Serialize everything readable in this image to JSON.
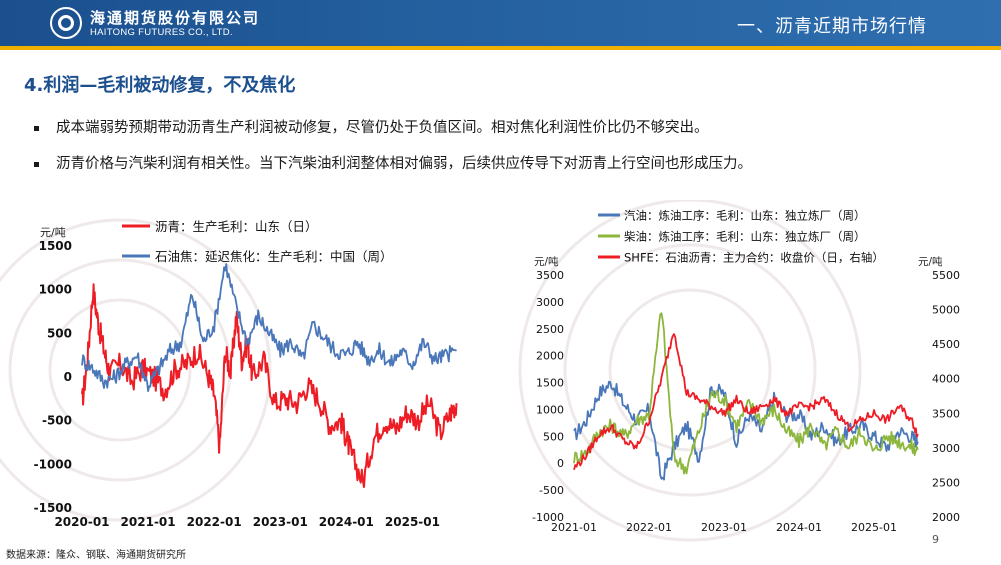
{
  "header": {
    "logo_cn": "海通期货股份有限公司",
    "logo_en": "HAITONG FUTURES CO., LTD.",
    "section_title": "一、沥青近期市场行情"
  },
  "slide": {
    "title": "4.利润—毛利被动修复，不及焦化",
    "bullets": [
      "成本端弱势预期带动沥青生产利润被动修复，尽管仍处于负值区间。相对焦化利润性价比仍不够突出。",
      "沥青价格与汽柴利润有相关性。当下汽柴油利润整体相对偏弱，后续供应传导下对沥青上行空间也形成压力。"
    ],
    "page_number": "9",
    "source_note": "数据来源：隆众、钢联、海通期货研究所"
  },
  "colors": {
    "red": "#ee1c25",
    "blue": "#4a77b9",
    "green": "#8cb63c",
    "brand": "#1b4f8e",
    "accent": "#f0b000"
  },
  "chart_data": [
    {
      "type": "line",
      "ylabel": "元/吨",
      "ylim": [
        -1500,
        1500
      ],
      "yticks": [
        "1500",
        "1000",
        "500",
        "0",
        "-500",
        "-1000",
        "-1500"
      ],
      "xticks": [
        "2020-01",
        "2021-01",
        "2022-01",
        "2023-01",
        "2024-01",
        "2025-01"
      ],
      "series": [
        {
          "name": "沥青：生产毛利：山东（日）",
          "color": "#ee1c25",
          "x": [
            "2020-01",
            "2020-02",
            "2020-03",
            "2020-04",
            "2020-05",
            "2020-06",
            "2020-08",
            "2020-10",
            "2020-12",
            "2021-02",
            "2021-04",
            "2021-06",
            "2021-08",
            "2021-10",
            "2021-12",
            "2022-01",
            "2022-02",
            "2022-03",
            "2022-04",
            "2022-05",
            "2022-06",
            "2022-07",
            "2022-08",
            "2022-10",
            "2022-12",
            "2023-02",
            "2023-04",
            "2023-06",
            "2023-08",
            "2023-10",
            "2023-12",
            "2024-01",
            "2024-02",
            "2024-04",
            "2024-06",
            "2024-08",
            "2024-10",
            "2024-12",
            "2025-02",
            "2025-04",
            "2025-06",
            "2025-08",
            "2025-09"
          ],
          "values": [
            -300,
            200,
            1000,
            600,
            300,
            50,
            150,
            -50,
            100,
            0,
            -150,
            100,
            150,
            300,
            0,
            -200,
            -800,
            300,
            50,
            700,
            200,
            400,
            0,
            200,
            -300,
            -250,
            -300,
            -100,
            -250,
            -550,
            -500,
            -700,
            -900,
            -1200,
            -700,
            -500,
            -600,
            -400,
            -500,
            -300,
            -650,
            -400,
            -300
          ]
        },
        {
          "name": "石油焦：延迟焦化：生产毛利：中国（周）",
          "color": "#4a77b9",
          "x": [
            "2020-01",
            "2020-03",
            "2020-05",
            "2020-07",
            "2020-09",
            "2020-11",
            "2021-01",
            "2021-03",
            "2021-05",
            "2021-07",
            "2021-09",
            "2021-11",
            "2022-01",
            "2022-03",
            "2022-05",
            "2022-07",
            "2022-09",
            "2022-11",
            "2023-01",
            "2023-03",
            "2023-05",
            "2023-07",
            "2023-09",
            "2023-11",
            "2024-01",
            "2024-03",
            "2024-05",
            "2024-07",
            "2024-09",
            "2024-11",
            "2025-01",
            "2025-03",
            "2025-05",
            "2025-07",
            "2025-09"
          ],
          "values": [
            200,
            100,
            -50,
            0,
            150,
            250,
            -100,
            100,
            300,
            400,
            950,
            400,
            600,
            1300,
            800,
            400,
            700,
            500,
            300,
            400,
            200,
            600,
            450,
            300,
            250,
            400,
            200,
            300,
            150,
            300,
            150,
            400,
            200,
            250,
            300
          ]
        }
      ]
    },
    {
      "type": "line",
      "ylabel": "元/吨",
      "ylabel_right": "元/吨",
      "ylim": [
        -1000,
        3500
      ],
      "ylim_right": [
        2000,
        5500
      ],
      "yticks": [
        "3500",
        "3000",
        "2500",
        "2000",
        "1500",
        "1000",
        "500",
        "0",
        "-500",
        "-1000"
      ],
      "yticks_right": [
        "5500",
        "5000",
        "4500",
        "4000",
        "3500",
        "3000",
        "2500",
        "2000"
      ],
      "xticks": [
        "2021-01",
        "2022-01",
        "2023-01",
        "2024-01",
        "2025-01"
      ],
      "series": [
        {
          "name": "汽油：炼油工序：毛利：山东：独立炼厂（周）",
          "color": "#4a77b9",
          "axis": "left",
          "x": [
            "2021-01",
            "2021-03",
            "2021-05",
            "2021-07",
            "2021-09",
            "2021-11",
            "2022-01",
            "2022-03",
            "2022-05",
            "2022-07",
            "2022-09",
            "2022-11",
            "2023-01",
            "2023-03",
            "2023-05",
            "2023-07",
            "2023-09",
            "2023-11",
            "2024-01",
            "2024-03",
            "2024-05",
            "2024-07",
            "2024-09",
            "2024-11",
            "2025-01",
            "2025-03",
            "2025-05",
            "2025-07",
            "2025-08"
          ],
          "values": [
            500,
            800,
            1300,
            1500,
            1100,
            800,
            1000,
            -300,
            300,
            700,
            100,
            1400,
            1300,
            400,
            900,
            600,
            1200,
            900,
            900,
            500,
            700,
            400,
            600,
            700,
            500,
            300,
            600,
            500,
            400
          ]
        },
        {
          "name": "柴油：炼油工序：毛利：山东：独立炼厂（周）",
          "color": "#8cb63c",
          "axis": "left",
          "x": [
            "2021-01",
            "2021-03",
            "2021-05",
            "2021-07",
            "2021-09",
            "2021-11",
            "2022-01",
            "2022-03",
            "2022-05",
            "2022-07",
            "2022-09",
            "2022-11",
            "2023-01",
            "2023-03",
            "2023-05",
            "2023-07",
            "2023-09",
            "2023-11",
            "2024-01",
            "2024-03",
            "2024-05",
            "2024-07",
            "2024-09",
            "2024-11",
            "2025-01",
            "2025-03",
            "2025-05",
            "2025-07",
            "2025-08"
          ],
          "values": [
            100,
            200,
            600,
            700,
            500,
            800,
            900,
            2900,
            100,
            -100,
            600,
            1300,
            1200,
            700,
            1100,
            800,
            1000,
            600,
            400,
            700,
            300,
            600,
            300,
            600,
            200,
            500,
            400,
            300,
            250
          ]
        },
        {
          "name": "SHFE：石油沥青：主力合约：收盘价（日，右轴）",
          "color": "#ee1c25",
          "axis": "right",
          "x": [
            "2021-01",
            "2021-03",
            "2021-05",
            "2021-07",
            "2021-09",
            "2021-11",
            "2022-01",
            "2022-03",
            "2022-05",
            "2022-07",
            "2022-09",
            "2022-11",
            "2023-01",
            "2023-03",
            "2023-05",
            "2023-07",
            "2023-09",
            "2023-11",
            "2024-01",
            "2024-03",
            "2024-05",
            "2024-07",
            "2024-09",
            "2024-11",
            "2025-01",
            "2025-03",
            "2025-05",
            "2025-07",
            "2025-08"
          ],
          "values": [
            2700,
            2900,
            3200,
            3300,
            3100,
            3000,
            3400,
            4000,
            4700,
            3800,
            3700,
            3600,
            3500,
            3700,
            3500,
            3600,
            3700,
            3500,
            3600,
            3600,
            3700,
            3500,
            3300,
            3400,
            3500,
            3400,
            3600,
            3400,
            3200
          ]
        }
      ]
    }
  ]
}
